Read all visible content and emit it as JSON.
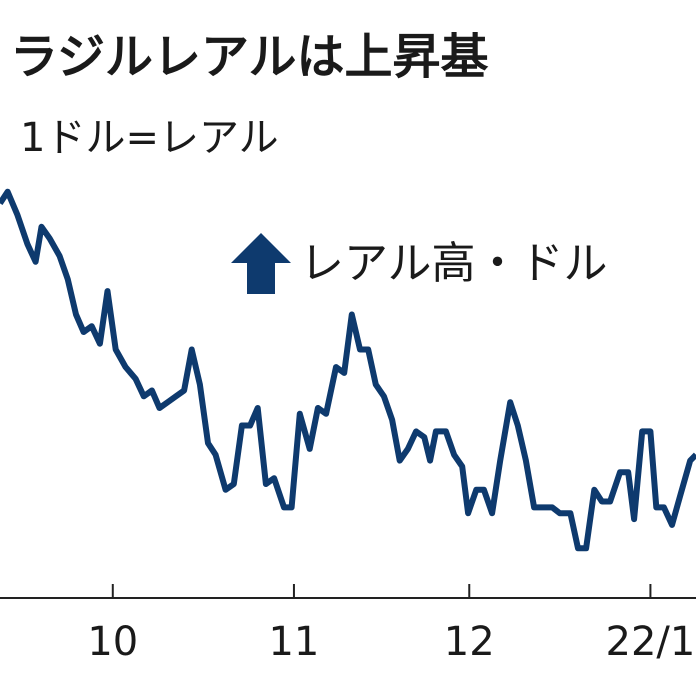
{
  "chart_data": {
    "type": "line",
    "title": "ラジルレアルは上昇基",
    "subtitle": "1ドル=レアル",
    "annotation": "レアル高・ドル",
    "color": "#0e3a6e",
    "y_inverted": true,
    "xlim": [
      -19.3,
      99.8
    ],
    "ylim": [
      5.1,
      5.75
    ],
    "xticks": [
      {
        "value": 0,
        "label": "10"
      },
      {
        "value": 31,
        "label": "11"
      },
      {
        "value": 61,
        "label": "12"
      },
      {
        "value": 92,
        "label": "22/1"
      }
    ],
    "x": [
      -19.3,
      -18.0,
      -16.3,
      -14.6,
      -13.2,
      -12.2,
      -10.8,
      -9.1,
      -7.7,
      -6.3,
      -5.0,
      -3.6,
      -2.2,
      -0.9,
      0.5,
      2.2,
      3.9,
      5.3,
      6.7,
      8.0,
      9.4,
      10.8,
      12.2,
      13.5,
      14.9,
      16.3,
      17.6,
      19.3,
      20.7,
      22.1,
      23.5,
      24.8,
      26.2,
      27.6,
      29.3,
      30.6,
      32.0,
      33.7,
      35.1,
      36.5,
      38.2,
      39.6,
      40.9,
      42.3,
      43.7,
      45.0,
      46.4,
      47.8,
      49.1,
      50.5,
      51.9,
      53.3,
      54.3,
      55.3,
      57.0,
      58.4,
      59.8,
      60.8,
      62.2,
      63.5,
      64.9,
      66.3,
      68.0,
      69.3,
      70.7,
      72.1,
      73.5,
      75.2,
      76.5,
      78.3,
      79.6,
      81.0,
      82.4,
      83.7,
      85.1,
      86.8,
      88.2,
      89.2,
      90.6,
      92.0,
      93.0,
      94.3,
      95.7,
      97.1,
      98.8,
      99.8
    ],
    "values": [
      5.14,
      5.12,
      5.16,
      5.21,
      5.24,
      5.18,
      5.2,
      5.23,
      5.27,
      5.33,
      5.36,
      5.35,
      5.38,
      5.29,
      5.39,
      5.42,
      5.44,
      5.47,
      5.46,
      5.49,
      5.48,
      5.47,
      5.46,
      5.39,
      5.45,
      5.55,
      5.57,
      5.63,
      5.62,
      5.52,
      5.52,
      5.49,
      5.62,
      5.61,
      5.66,
      5.66,
      5.5,
      5.56,
      5.49,
      5.5,
      5.42,
      5.43,
      5.33,
      5.39,
      5.39,
      5.45,
      5.47,
      5.51,
      5.58,
      5.56,
      5.53,
      5.54,
      5.58,
      5.53,
      5.53,
      5.57,
      5.59,
      5.67,
      5.63,
      5.63,
      5.67,
      5.58,
      5.48,
      5.52,
      5.58,
      5.66,
      5.66,
      5.66,
      5.67,
      5.67,
      5.73,
      5.73,
      5.63,
      5.65,
      5.65,
      5.6,
      5.6,
      5.68,
      5.53,
      5.53,
      5.66,
      5.66,
      5.69,
      5.64,
      5.58,
      5.57
    ]
  }
}
